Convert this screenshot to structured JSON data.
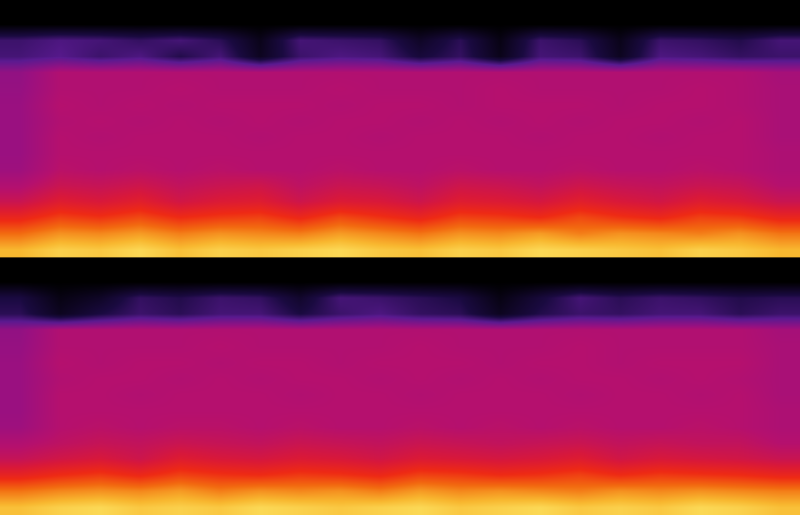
{
  "chart_data": [
    {
      "type": "heatmap",
      "zlim": [
        0,
        100
      ],
      "tick_labels": false,
      "cells": [
        [
          90,
          93,
          92,
          94,
          91,
          93,
          92,
          93,
          94,
          92,
          91,
          93,
          92,
          94,
          93,
          92,
          91,
          93,
          92,
          90
        ],
        [
          82,
          86,
          85,
          87,
          84,
          86,
          85,
          84,
          87,
          85,
          83,
          86,
          85,
          87,
          84,
          86,
          85,
          84,
          86,
          83
        ],
        [
          72,
          77,
          75,
          78,
          74,
          76,
          77,
          73,
          78,
          75,
          72,
          77,
          76,
          74,
          78,
          75,
          73,
          77,
          76,
          72
        ],
        [
          62,
          68,
          66,
          69,
          64,
          67,
          68,
          63,
          67,
          66,
          63,
          68,
          67,
          65,
          69,
          66,
          64,
          68,
          66,
          62
        ],
        [
          56,
          62,
          61,
          63,
          60,
          62,
          63,
          59,
          62,
          61,
          59,
          63,
          62,
          60,
          63,
          61,
          60,
          62,
          61,
          57
        ],
        [
          51,
          58,
          57,
          58,
          57,
          58,
          57,
          57,
          58,
          57,
          57,
          58,
          57,
          57,
          58,
          57,
          57,
          58,
          57,
          55
        ],
        [
          50,
          57,
          57,
          57,
          57,
          57,
          57,
          57,
          57,
          57,
          57,
          57,
          57,
          57,
          57,
          57,
          57,
          57,
          57,
          55
        ],
        [
          50,
          57,
          56,
          57,
          57,
          57,
          56,
          57,
          57,
          56,
          57,
          57,
          57,
          56,
          57,
          57,
          56,
          57,
          57,
          54
        ],
        [
          50,
          56,
          57,
          56,
          57,
          56,
          57,
          56,
          57,
          57,
          56,
          57,
          56,
          57,
          56,
          57,
          57,
          56,
          57,
          54
        ],
        [
          50,
          57,
          56,
          57,
          56,
          57,
          57,
          57,
          56,
          57,
          57,
          56,
          57,
          57,
          57,
          56,
          57,
          57,
          56,
          54
        ],
        [
          49,
          56,
          56,
          56,
          57,
          56,
          56,
          56,
          57,
          56,
          56,
          56,
          57,
          56,
          56,
          56,
          56,
          57,
          56,
          54
        ],
        [
          48,
          56,
          56,
          56,
          56,
          56,
          56,
          56,
          56,
          56,
          56,
          56,
          56,
          56,
          56,
          56,
          56,
          56,
          56,
          53
        ],
        [
          30,
          34,
          28,
          32,
          22,
          30,
          10,
          28,
          32,
          30,
          18,
          26,
          8,
          30,
          28,
          10,
          32,
          30,
          26,
          28
        ],
        [
          28,
          32,
          30,
          26,
          30,
          24,
          8,
          30,
          28,
          26,
          12,
          24,
          6,
          28,
          24,
          8,
          28,
          26,
          22,
          30
        ],
        [
          0,
          0,
          0,
          0,
          0,
          0,
          0,
          0,
          0,
          0,
          0,
          0,
          0,
          0,
          0,
          0,
          0,
          0,
          0,
          0
        ],
        [
          0,
          0,
          0,
          0,
          0,
          0,
          0,
          0,
          0,
          0,
          0,
          0,
          0,
          0,
          0,
          0,
          0,
          0,
          0,
          0
        ]
      ]
    },
    {
      "type": "heatmap",
      "zlim": [
        0,
        100
      ],
      "tick_labels": false,
      "cells": [
        [
          91,
          93,
          94,
          92,
          93,
          92,
          94,
          93,
          92,
          93,
          94,
          92,
          93,
          94,
          92,
          93,
          92,
          94,
          93,
          91
        ],
        [
          83,
          85,
          86,
          85,
          87,
          84,
          86,
          85,
          86,
          84,
          87,
          85,
          86,
          85,
          84,
          86,
          85,
          86,
          85,
          84
        ],
        [
          71,
          74,
          76,
          73,
          77,
          75,
          74,
          76,
          75,
          73,
          77,
          76,
          74,
          75,
          77,
          74,
          76,
          75,
          74,
          72
        ],
        [
          61,
          64,
          66,
          63,
          68,
          66,
          65,
          67,
          66,
          64,
          67,
          66,
          65,
          66,
          68,
          64,
          66,
          65,
          64,
          62
        ],
        [
          56,
          59,
          61,
          60,
          62,
          61,
          60,
          62,
          61,
          60,
          62,
          61,
          60,
          61,
          62,
          60,
          61,
          60,
          60,
          57
        ],
        [
          51,
          57,
          58,
          57,
          58,
          58,
          57,
          58,
          57,
          57,
          58,
          57,
          58,
          57,
          58,
          57,
          57,
          58,
          57,
          55
        ],
        [
          50,
          57,
          57,
          57,
          57,
          57,
          57,
          57,
          57,
          57,
          57,
          57,
          57,
          57,
          57,
          57,
          57,
          57,
          57,
          55
        ],
        [
          50,
          57,
          57,
          56,
          57,
          57,
          57,
          56,
          57,
          57,
          56,
          57,
          57,
          57,
          56,
          57,
          57,
          56,
          57,
          54
        ],
        [
          50,
          56,
          57,
          57,
          56,
          57,
          56,
          57,
          57,
          56,
          57,
          56,
          57,
          56,
          57,
          57,
          56,
          57,
          56,
          54
        ],
        [
          50,
          57,
          56,
          57,
          57,
          56,
          57,
          57,
          56,
          57,
          57,
          57,
          56,
          57,
          57,
          56,
          57,
          57,
          57,
          54
        ],
        [
          49,
          56,
          56,
          56,
          56,
          57,
          56,
          56,
          56,
          56,
          57,
          56,
          56,
          56,
          57,
          56,
          56,
          56,
          56,
          54
        ],
        [
          48,
          56,
          56,
          56,
          56,
          56,
          56,
          56,
          56,
          56,
          56,
          56,
          56,
          56,
          56,
          56,
          56,
          56,
          56,
          53
        ],
        [
          24,
          10,
          20,
          28,
          24,
          30,
          30,
          20,
          28,
          32,
          26,
          24,
          10,
          22,
          28,
          26,
          30,
          30,
          24,
          28
        ],
        [
          20,
          6,
          12,
          26,
          22,
          28,
          26,
          14,
          30,
          28,
          24,
          20,
          6,
          18,
          30,
          24,
          28,
          26,
          22,
          24
        ],
        [
          0,
          0,
          0,
          0,
          0,
          0,
          0,
          0,
          0,
          0,
          0,
          0,
          0,
          0,
          0,
          0,
          0,
          0,
          0,
          0
        ],
        [
          0,
          0,
          0,
          0,
          0,
          0,
          0,
          0,
          0,
          0,
          0,
          0,
          0,
          0,
          0,
          0,
          0,
          0,
          0,
          0
        ]
      ]
    }
  ]
}
